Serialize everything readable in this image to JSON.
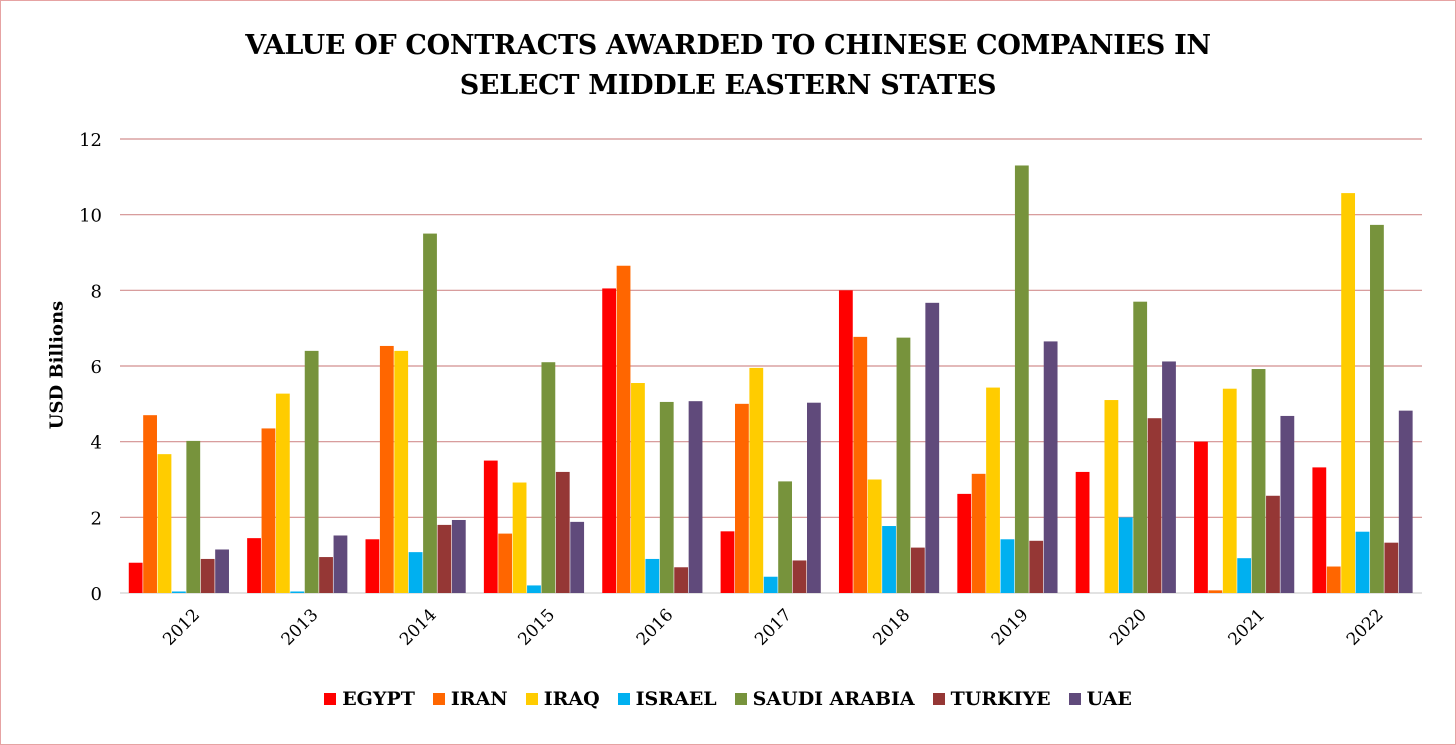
{
  "chart_data": {
    "type": "bar",
    "title_lines": [
      "VALUE OF CONTRACTS AWARDED TO CHINESE COMPANIES IN",
      "SELECT MIDDLE EASTERN STATES"
    ],
    "xlabel": "",
    "ylabel": "USD Billions",
    "ylim": [
      0,
      12
    ],
    "yticks": [
      "0",
      "2",
      "4",
      "6",
      "8",
      "10",
      "12"
    ],
    "grid": true,
    "legend_position": "bottom",
    "categories": [
      "2012",
      "2013",
      "2014",
      "2015",
      "2016",
      "2017",
      "2018",
      "2019",
      "2020",
      "2021",
      "2022"
    ],
    "series": [
      {
        "name": "EGYPT",
        "color": "#ff0000",
        "values": [
          0.8,
          1.45,
          1.42,
          3.5,
          8.05,
          1.63,
          8.0,
          2.62,
          3.2,
          4.0,
          3.32
        ]
      },
      {
        "name": "IRAN",
        "color": "#ff6600",
        "values": [
          4.7,
          4.35,
          6.53,
          1.57,
          8.65,
          5.0,
          6.77,
          3.15,
          0,
          0.07,
          0.7
        ]
      },
      {
        "name": "IRAQ",
        "color": "#ffcc00",
        "values": [
          3.67,
          5.27,
          6.4,
          2.92,
          5.55,
          5.95,
          3.0,
          5.43,
          5.1,
          5.4,
          10.57
        ]
      },
      {
        "name": "ISRAEL",
        "color": "#00b0f0",
        "values": [
          0.04,
          0.04,
          1.08,
          0.2,
          0.9,
          0.43,
          1.77,
          1.42,
          2.0,
          0.92,
          1.62
        ]
      },
      {
        "name": "SAUDI ARABIA",
        "color": "#77933c",
        "values": [
          4.02,
          6.4,
          9.5,
          6.1,
          5.05,
          2.95,
          6.75,
          11.3,
          7.7,
          5.92,
          9.73
        ]
      },
      {
        "name": "TURKIYE",
        "color": "#953735",
        "values": [
          0.9,
          0.95,
          1.8,
          3.2,
          0.68,
          0.86,
          1.2,
          1.38,
          4.62,
          2.57,
          1.33
        ]
      },
      {
        "name": "UAE",
        "color": "#604a7b",
        "values": [
          1.15,
          1.52,
          1.93,
          1.88,
          5.07,
          5.03,
          7.67,
          6.65,
          6.12,
          4.68,
          4.82
        ]
      }
    ],
    "colors": {
      "gridline": "#d28f8f",
      "axis": "#d9d9d9",
      "border": "#e6a3a3"
    }
  }
}
